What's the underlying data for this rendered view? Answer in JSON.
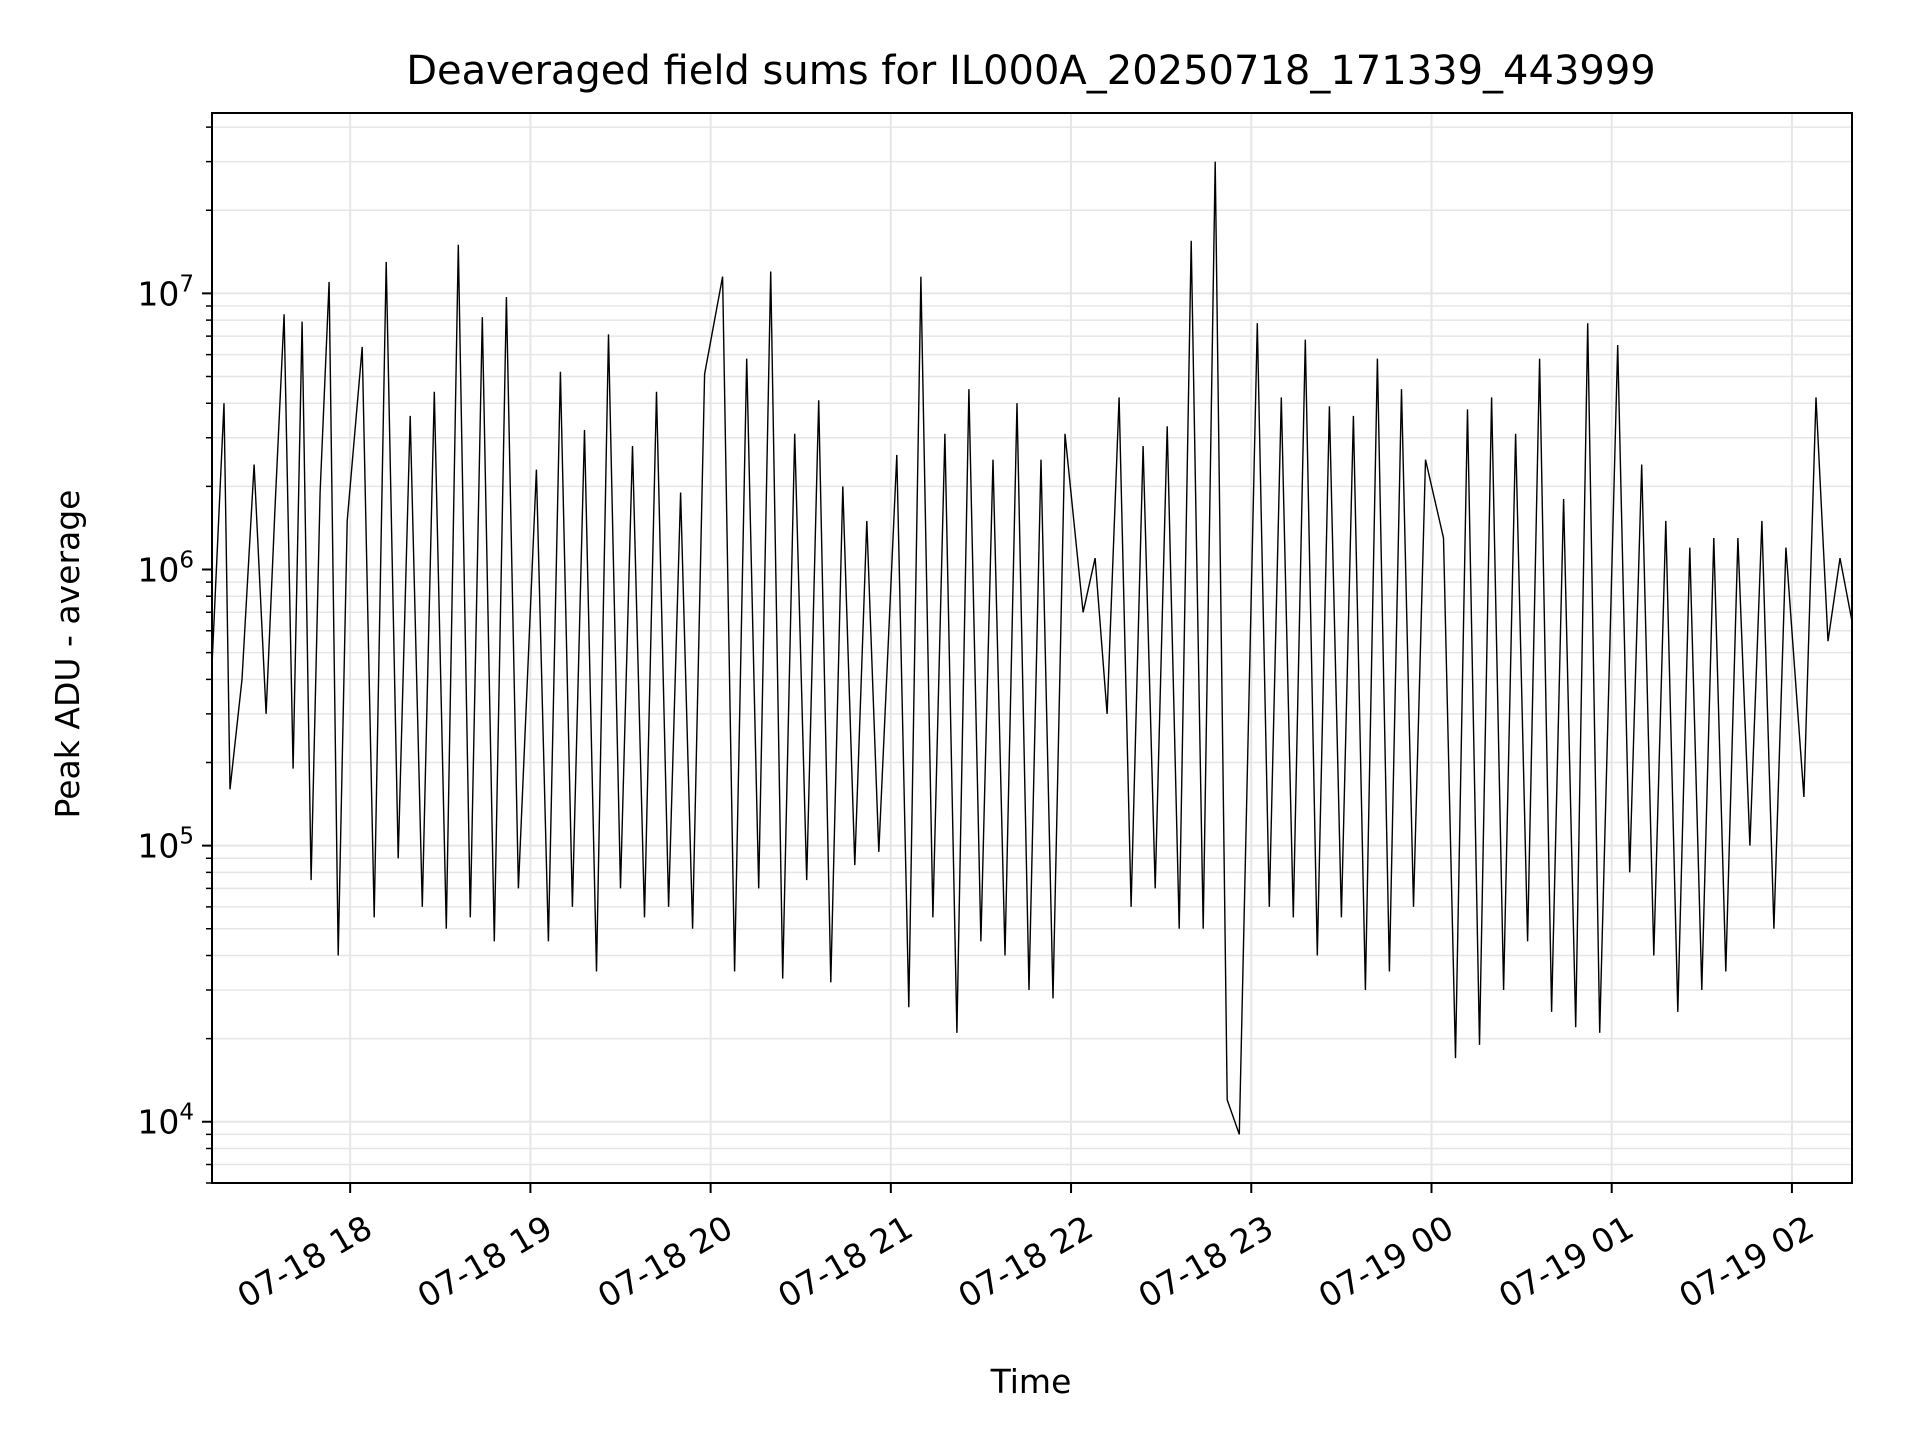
{
  "chart_data": {
    "type": "line",
    "title": "Deaveraged field sums for IL000A_20250718_171339_443999",
    "xlabel": "Time",
    "ylabel": "Peak ADU - average",
    "yscale": "log",
    "ylim": [
      6000,
      45000000
    ],
    "xlim": [
      "2025-07-18T17:14",
      "2025-07-19T02:20"
    ],
    "grid": true,
    "line_color": "#000000",
    "grid_color": "#e6e6e6",
    "x_ticks": [
      {
        "t": "2025-07-18T18:00",
        "label": "07-18 18"
      },
      {
        "t": "2025-07-18T19:00",
        "label": "07-18 19"
      },
      {
        "t": "2025-07-18T20:00",
        "label": "07-18 20"
      },
      {
        "t": "2025-07-18T21:00",
        "label": "07-18 21"
      },
      {
        "t": "2025-07-18T22:00",
        "label": "07-18 22"
      },
      {
        "t": "2025-07-18T23:00",
        "label": "07-18 23"
      },
      {
        "t": "2025-07-19T00:00",
        "label": "07-19 00"
      },
      {
        "t": "2025-07-19T01:00",
        "label": "07-19 01"
      },
      {
        "t": "2025-07-19T02:00",
        "label": "07-19 02"
      }
    ],
    "y_ticks": [
      {
        "value": 10000,
        "base": "10",
        "exp": "4"
      },
      {
        "value": 100000,
        "base": "10",
        "exp": "5"
      },
      {
        "value": 1000000,
        "base": "10",
        "exp": "6"
      },
      {
        "value": 10000000,
        "base": "10",
        "exp": "7"
      }
    ],
    "series": [
      {
        "x": [
          "2025-07-18T17:14",
          "2025-07-18T17:18",
          "2025-07-18T17:20",
          "2025-07-18T17:24",
          "2025-07-18T17:28",
          "2025-07-18T17:32",
          "2025-07-18T17:35",
          "2025-07-18T17:38",
          "2025-07-18T17:41",
          "2025-07-18T17:44",
          "2025-07-18T17:47",
          "2025-07-18T17:50",
          "2025-07-18T17:53",
          "2025-07-18T17:56",
          "2025-07-18T17:59",
          "2025-07-18T18:04",
          "2025-07-18T18:08",
          "2025-07-18T18:12",
          "2025-07-18T18:16",
          "2025-07-18T18:20",
          "2025-07-18T18:24",
          "2025-07-18T18:28",
          "2025-07-18T18:32",
          "2025-07-18T18:36",
          "2025-07-18T18:40",
          "2025-07-18T18:44",
          "2025-07-18T18:48",
          "2025-07-18T18:52",
          "2025-07-18T18:56",
          "2025-07-18T19:02",
          "2025-07-18T19:06",
          "2025-07-18T19:10",
          "2025-07-18T19:14",
          "2025-07-18T19:18",
          "2025-07-18T19:22",
          "2025-07-18T19:26",
          "2025-07-18T19:30",
          "2025-07-18T19:34",
          "2025-07-18T19:38",
          "2025-07-18T19:42",
          "2025-07-18T19:46",
          "2025-07-18T19:50",
          "2025-07-18T19:54",
          "2025-07-18T19:58",
          "2025-07-18T20:04",
          "2025-07-18T20:08",
          "2025-07-18T20:12",
          "2025-07-18T20:16",
          "2025-07-18T20:20",
          "2025-07-18T20:24",
          "2025-07-18T20:28",
          "2025-07-18T20:32",
          "2025-07-18T20:36",
          "2025-07-18T20:40",
          "2025-07-18T20:44",
          "2025-07-18T20:48",
          "2025-07-18T20:52",
          "2025-07-18T20:56",
          "2025-07-18T21:02",
          "2025-07-18T21:06",
          "2025-07-18T21:10",
          "2025-07-18T21:14",
          "2025-07-18T21:18",
          "2025-07-18T21:22",
          "2025-07-18T21:26",
          "2025-07-18T21:30",
          "2025-07-18T21:34",
          "2025-07-18T21:38",
          "2025-07-18T21:42",
          "2025-07-18T21:46",
          "2025-07-18T21:50",
          "2025-07-18T21:54",
          "2025-07-18T21:58",
          "2025-07-18T22:04",
          "2025-07-18T22:08",
          "2025-07-18T22:12",
          "2025-07-18T22:16",
          "2025-07-18T22:20",
          "2025-07-18T22:24",
          "2025-07-18T22:28",
          "2025-07-18T22:32",
          "2025-07-18T22:36",
          "2025-07-18T22:40",
          "2025-07-18T22:44",
          "2025-07-18T22:48",
          "2025-07-18T22:52",
          "2025-07-18T22:56",
          "2025-07-18T23:02",
          "2025-07-18T23:06",
          "2025-07-18T23:10",
          "2025-07-18T23:14",
          "2025-07-18T23:18",
          "2025-07-18T23:22",
          "2025-07-18T23:26",
          "2025-07-18T23:30",
          "2025-07-18T23:34",
          "2025-07-18T23:38",
          "2025-07-18T23:42",
          "2025-07-18T23:46",
          "2025-07-18T23:50",
          "2025-07-18T23:54",
          "2025-07-18T23:58",
          "2025-07-19T00:04",
          "2025-07-19T00:08",
          "2025-07-19T00:12",
          "2025-07-19T00:16",
          "2025-07-19T00:20",
          "2025-07-19T00:24",
          "2025-07-19T00:28",
          "2025-07-19T00:32",
          "2025-07-19T00:36",
          "2025-07-19T00:40",
          "2025-07-19T00:44",
          "2025-07-19T00:48",
          "2025-07-19T00:52",
          "2025-07-19T00:56",
          "2025-07-19T01:02",
          "2025-07-19T01:06",
          "2025-07-19T01:10",
          "2025-07-19T01:14",
          "2025-07-19T01:18",
          "2025-07-19T01:22",
          "2025-07-19T01:26",
          "2025-07-19T01:30",
          "2025-07-19T01:34",
          "2025-07-19T01:38",
          "2025-07-19T01:42",
          "2025-07-19T01:46",
          "2025-07-19T01:50",
          "2025-07-19T01:54",
          "2025-07-19T01:58",
          "2025-07-19T02:04",
          "2025-07-19T02:08",
          "2025-07-19T02:12",
          "2025-07-19T02:16",
          "2025-07-19T02:20"
        ],
        "y": [
          450000,
          4000000,
          160000,
          400000,
          2400000,
          300000,
          1700000,
          8400000,
          190000,
          7900000,
          75000,
          1900000,
          11000000,
          40000,
          1500000,
          6400000,
          55000,
          13000000,
          90000,
          3600000,
          60000,
          4400000,
          50000,
          15000000,
          55000,
          8200000,
          45000,
          9700000,
          70000,
          2300000,
          45000,
          5200000,
          60000,
          3200000,
          35000,
          7100000,
          70000,
          2800000,
          55000,
          4400000,
          60000,
          1900000,
          50000,
          5100000,
          11500000,
          35000,
          5800000,
          70000,
          12000000,
          33000,
          3100000,
          75000,
          4100000,
          32000,
          2000000,
          85000,
          1500000,
          95000,
          2600000,
          26000,
          11500000,
          55000,
          3100000,
          21000,
          4500000,
          45000,
          2500000,
          40000,
          4000000,
          30000,
          2500000,
          28000,
          3100000,
          700000,
          1100000,
          300000,
          4200000,
          60000,
          2800000,
          70000,
          3300000,
          50000,
          15500000,
          50000,
          30000000,
          12000,
          9000,
          7800000,
          60000,
          4200000,
          55000,
          6800000,
          40000,
          3900000,
          55000,
          3600000,
          30000,
          5800000,
          35000,
          4500000,
          60000,
          2500000,
          1300000,
          17000,
          3800000,
          19000,
          4200000,
          30000,
          3100000,
          45000,
          5800000,
          25000,
          1800000,
          22000,
          7800000,
          21000,
          6500000,
          80000,
          2400000,
          40000,
          1500000,
          25000,
          1200000,
          30000,
          1300000,
          35000,
          1300000,
          100000,
          1500000,
          50000,
          1200000,
          150000,
          4200000,
          550000,
          1100000,
          650000
        ]
      }
    ]
  }
}
